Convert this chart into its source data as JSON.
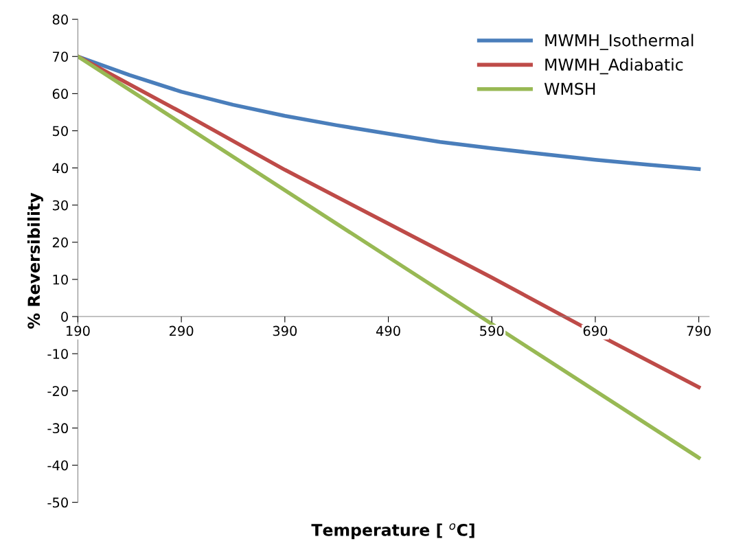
{
  "chart_data": {
    "type": "line",
    "xlabel": "Temperature [ $^{o}$C]",
    "ylabel": "% Reversibility",
    "xlim": [
      190,
      800
    ],
    "xticks": [
      190,
      290,
      390,
      490,
      590,
      690,
      790
    ],
    "ylim": [
      -50,
      80
    ],
    "yticks": [
      -50,
      -40,
      -30,
      -20,
      -10,
      0,
      10,
      20,
      30,
      40,
      50,
      60,
      70,
      80
    ],
    "grid": false,
    "legend": "top right",
    "marker": "none",
    "line_style": "solid",
    "series": [
      {
        "name": "MWMH_Isothermal",
        "color": "#4a7ebb",
        "x": [
          190,
          240,
          290,
          340,
          390,
          440,
          490,
          540,
          590,
          640,
          690,
          740,
          790
        ],
        "values": [
          70,
          65,
          60.5,
          57,
          54,
          51.5,
          49.2,
          47,
          45.3,
          43.7,
          42.2,
          40.9,
          39.7
        ]
      },
      {
        "name": "MWMH_Adiabatic",
        "color": "#be4b48",
        "x": [
          190,
          290,
          390,
          490,
          590,
          690,
          790
        ],
        "values": [
          70,
          55,
          39.5,
          25,
          10.5,
          -4.5,
          -19
        ]
      },
      {
        "name": "WMSH",
        "color": "#98b954",
        "x": [
          190,
          490,
          790
        ],
        "values": [
          70,
          16,
          -38
        ]
      }
    ]
  }
}
